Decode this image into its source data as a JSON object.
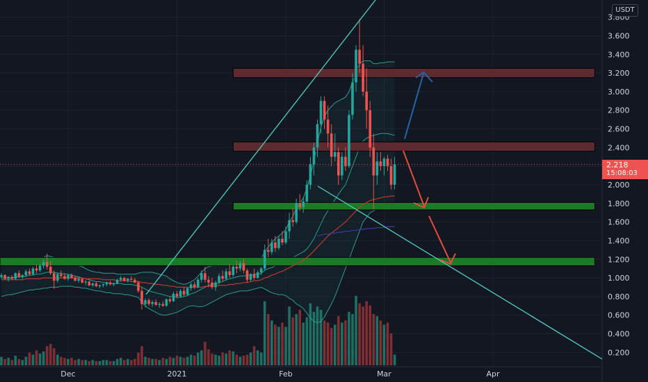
{
  "header": {
    "currency_label": "USDT"
  },
  "price_label": {
    "value": "2.218",
    "countdown": "15:08:03"
  },
  "chart_data": {
    "type": "candlestick",
    "yaxis": {
      "ylim": [
        0.1,
        3.9
      ],
      "ticks": [
        "0.200",
        "0.400",
        "0.600",
        "0.800",
        "1.000",
        "1.200",
        "1.400",
        "1.600",
        "1.800",
        "2.000",
        "2.200",
        "2.400",
        "2.600",
        "2.800",
        "3.000",
        "3.200",
        "3.400",
        "3.600",
        "3.800"
      ]
    },
    "xaxis": {
      "ticks": [
        {
          "label": "Dec",
          "i": 19
        },
        {
          "label": "2021",
          "i": 50
        },
        {
          "label": "Feb",
          "i": 81
        },
        {
          "label": "Mar",
          "i": 109
        },
        {
          "label": "Apr",
          "i": 140
        }
      ]
    },
    "current_price": 2.218,
    "zones": [
      {
        "name": "resistance-high",
        "from": 3.15,
        "to": 3.25,
        "color": "#5d2a2f",
        "i_start": 66,
        "i_end": 169
      },
      {
        "name": "resistance-mid",
        "from": 2.36,
        "to": 2.46,
        "color": "#5d2a2f",
        "i_start": 66,
        "i_end": 169
      },
      {
        "name": "support-mid",
        "from": 1.73,
        "to": 1.81,
        "color": "#1b7a25",
        "i_start": 66,
        "i_end": 169
      },
      {
        "name": "support-low",
        "from": 1.13,
        "to": 1.22,
        "color": "#1b7a25",
        "i_start": 0,
        "i_end": 169
      }
    ],
    "candles": [
      [
        1.01,
        1.05,
        0.99,
        1.03
      ],
      [
        1.03,
        1.04,
        0.98,
        0.99
      ],
      [
        0.99,
        1.02,
        0.96,
        1.01
      ],
      [
        1.01,
        1.03,
        0.98,
        0.99
      ],
      [
        0.99,
        1.06,
        0.98,
        1.05
      ],
      [
        1.05,
        1.08,
        1.0,
        1.01
      ],
      [
        1.01,
        1.04,
        0.99,
        1.03
      ],
      [
        1.03,
        1.09,
        1.01,
        1.07
      ],
      [
        1.07,
        1.1,
        1.02,
        1.04
      ],
      [
        1.04,
        1.12,
        1.03,
        1.1
      ],
      [
        1.1,
        1.14,
        1.05,
        1.08
      ],
      [
        1.08,
        1.15,
        1.06,
        1.13
      ],
      [
        1.13,
        1.2,
        1.1,
        1.17
      ],
      [
        1.17,
        1.26,
        1.09,
        1.12
      ],
      [
        1.12,
        1.18,
        1.03,
        1.05
      ],
      [
        1.05,
        1.08,
        0.88,
        0.97
      ],
      [
        0.97,
        1.06,
        0.95,
        1.04
      ],
      [
        1.04,
        1.08,
        1.0,
        1.02
      ],
      [
        1.02,
        1.05,
        0.98,
        0.99
      ],
      [
        0.99,
        1.04,
        0.97,
        1.03
      ],
      [
        1.03,
        1.05,
        0.99,
        1.0
      ],
      [
        1.0,
        1.02,
        0.96,
        0.97
      ],
      [
        0.97,
        1.01,
        0.95,
        0.99
      ],
      [
        0.99,
        1.0,
        0.94,
        0.95
      ],
      [
        0.95,
        0.98,
        0.92,
        0.96
      ],
      [
        0.96,
        0.97,
        0.91,
        0.92
      ],
      [
        0.92,
        0.95,
        0.9,
        0.94
      ],
      [
        0.94,
        0.96,
        0.9,
        0.91
      ],
      [
        0.91,
        0.93,
        0.89,
        0.92
      ],
      [
        0.92,
        0.94,
        0.9,
        0.93
      ],
      [
        0.93,
        0.96,
        0.91,
        0.95
      ],
      [
        0.95,
        0.97,
        0.92,
        0.93
      ],
      [
        0.93,
        0.95,
        0.91,
        0.94
      ],
      [
        0.94,
        0.99,
        0.93,
        0.98
      ],
      [
        0.98,
        1.02,
        0.96,
        1.0
      ],
      [
        1.0,
        1.01,
        0.96,
        0.97
      ],
      [
        0.97,
        1.0,
        0.95,
        0.99
      ],
      [
        0.99,
        1.02,
        0.97,
        0.98
      ],
      [
        0.98,
        1.0,
        0.94,
        0.95
      ],
      [
        0.95,
        0.97,
        0.84,
        0.86
      ],
      [
        0.86,
        0.9,
        0.66,
        0.72
      ],
      [
        0.72,
        0.78,
        0.68,
        0.76
      ],
      [
        0.76,
        0.78,
        0.7,
        0.72
      ],
      [
        0.72,
        0.76,
        0.69,
        0.74
      ],
      [
        0.74,
        0.77,
        0.7,
        0.71
      ],
      [
        0.71,
        0.74,
        0.68,
        0.72
      ],
      [
        0.72,
        0.75,
        0.69,
        0.7
      ],
      [
        0.7,
        0.78,
        0.69,
        0.77
      ],
      [
        0.77,
        0.8,
        0.73,
        0.75
      ],
      [
        0.75,
        0.85,
        0.74,
        0.83
      ],
      [
        0.83,
        0.86,
        0.78,
        0.8
      ],
      [
        0.8,
        0.88,
        0.79,
        0.86
      ],
      [
        0.86,
        0.9,
        0.8,
        0.82
      ],
      [
        0.82,
        0.9,
        0.81,
        0.89
      ],
      [
        0.89,
        0.95,
        0.86,
        0.93
      ],
      [
        0.93,
        0.96,
        0.88,
        0.9
      ],
      [
        0.9,
        1.0,
        0.89,
        0.98
      ],
      [
        0.98,
        1.08,
        0.95,
        1.05
      ],
      [
        1.05,
        1.12,
        0.95,
        0.98
      ],
      [
        0.98,
        1.02,
        0.9,
        0.95
      ],
      [
        0.95,
        1.0,
        0.88,
        0.9
      ],
      [
        0.9,
        0.97,
        0.86,
        0.95
      ],
      [
        0.95,
        1.05,
        0.93,
        1.02
      ],
      [
        1.02,
        1.08,
        0.96,
        0.99
      ],
      [
        0.99,
        1.1,
        0.97,
        1.07
      ],
      [
        1.07,
        1.15,
        1.0,
        1.03
      ],
      [
        1.03,
        1.14,
        1.01,
        1.12
      ],
      [
        1.12,
        1.18,
        1.05,
        1.1
      ],
      [
        1.1,
        1.18,
        1.07,
        1.16
      ],
      [
        1.16,
        1.2,
        1.05,
        1.08
      ],
      [
        1.08,
        1.1,
        0.95,
        0.98
      ],
      [
        0.98,
        1.05,
        0.96,
        1.04
      ],
      [
        1.04,
        1.1,
        0.98,
        1.0
      ],
      [
        1.0,
        1.08,
        0.99,
        1.06
      ],
      [
        1.06,
        1.12,
        1.03,
        1.1
      ],
      [
        1.1,
        1.36,
        1.08,
        1.3
      ],
      [
        1.3,
        1.42,
        1.22,
        1.28
      ],
      [
        1.28,
        1.42,
        1.25,
        1.38
      ],
      [
        1.38,
        1.45,
        1.28,
        1.32
      ],
      [
        1.32,
        1.45,
        1.3,
        1.42
      ],
      [
        1.42,
        1.5,
        1.35,
        1.38
      ],
      [
        1.38,
        1.55,
        1.36,
        1.5
      ],
      [
        1.5,
        1.7,
        1.42,
        1.62
      ],
      [
        1.62,
        1.75,
        1.55,
        1.6
      ],
      [
        1.6,
        1.85,
        1.58,
        1.8
      ],
      [
        1.8,
        1.9,
        1.72,
        1.76
      ],
      [
        1.76,
        1.86,
        1.7,
        1.82
      ],
      [
        1.82,
        2.05,
        1.8,
        2.0
      ],
      [
        2.0,
        2.3,
        1.95,
        2.22
      ],
      [
        2.22,
        2.45,
        2.1,
        2.4
      ],
      [
        2.4,
        2.7,
        2.3,
        2.65
      ],
      [
        2.65,
        2.95,
        2.55,
        2.9
      ],
      [
        2.9,
        2.95,
        2.6,
        2.7
      ],
      [
        2.7,
        2.85,
        2.4,
        2.55
      ],
      [
        2.55,
        2.65,
        2.2,
        2.3
      ],
      [
        2.3,
        2.55,
        2.25,
        2.35
      ],
      [
        2.35,
        2.4,
        2.0,
        2.1
      ],
      [
        2.1,
        2.35,
        2.05,
        2.3
      ],
      [
        2.3,
        2.4,
        2.15,
        2.2
      ],
      [
        2.2,
        2.8,
        2.18,
        2.75
      ],
      [
        2.75,
        3.2,
        2.7,
        3.1
      ],
      [
        3.1,
        3.5,
        3.0,
        3.45
      ],
      [
        3.45,
        3.78,
        3.2,
        3.3
      ],
      [
        3.3,
        3.5,
        2.95,
        3.0
      ],
      [
        3.0,
        3.25,
        2.6,
        2.8
      ],
      [
        2.8,
        2.9,
        2.3,
        2.4
      ],
      [
        2.4,
        2.55,
        1.74,
        2.1
      ],
      [
        2.1,
        2.35,
        2.0,
        2.25
      ],
      [
        2.25,
        2.35,
        2.15,
        2.2
      ],
      [
        2.2,
        2.3,
        2.1,
        2.28
      ],
      [
        2.28,
        2.32,
        2.15,
        2.2
      ],
      [
        2.2,
        2.28,
        1.95,
        2.0
      ],
      [
        2.0,
        2.3,
        1.95,
        2.218
      ]
    ],
    "bb_upper": [
      1.2,
      1.2,
      1.19,
      1.19,
      1.18,
      1.18,
      1.18,
      1.19,
      1.19,
      1.2,
      1.2,
      1.21,
      1.22,
      1.24,
      1.23,
      1.22,
      1.2,
      1.19,
      1.18,
      1.17,
      1.16,
      1.15,
      1.13,
      1.12,
      1.1,
      1.08,
      1.07,
      1.06,
      1.06,
      1.05,
      1.05,
      1.05,
      1.05,
      1.04,
      1.04,
      1.04,
      1.04,
      1.04,
      1.04,
      1.05,
      1.06,
      1.06,
      1.06,
      1.06,
      1.05,
      1.04,
      1.03,
      1.02,
      0.99,
      0.97,
      0.95,
      0.94,
      0.93,
      0.94,
      0.96,
      0.98,
      1.02,
      1.06,
      1.1,
      1.12,
      1.13,
      1.13,
      1.13,
      1.13,
      1.14,
      1.15,
      1.16,
      1.17,
      1.18,
      1.19,
      1.2,
      1.2,
      1.2,
      1.2,
      1.21,
      1.28,
      1.33,
      1.38,
      1.42,
      1.45,
      1.48,
      1.52,
      1.6,
      1.66,
      1.75,
      1.8,
      1.86,
      1.96,
      2.1,
      2.25,
      2.45,
      2.62,
      2.73,
      2.8,
      2.84,
      2.88,
      2.9,
      2.92,
      2.94,
      3.0,
      3.1,
      3.2,
      3.3,
      3.33,
      3.33,
      3.33,
      3.3,
      3.3,
      3.31,
      3.31,
      3.32,
      3.32,
      3.32
    ],
    "bb_lower": [
      0.8,
      0.81,
      0.82,
      0.82,
      0.83,
      0.84,
      0.85,
      0.86,
      0.87,
      0.87,
      0.88,
      0.88,
      0.89,
      0.89,
      0.9,
      0.9,
      0.9,
      0.91,
      0.91,
      0.91,
      0.91,
      0.9,
      0.9,
      0.89,
      0.89,
      0.88,
      0.87,
      0.86,
      0.86,
      0.85,
      0.84,
      0.84,
      0.83,
      0.83,
      0.83,
      0.82,
      0.82,
      0.81,
      0.8,
      0.79,
      0.74,
      0.7,
      0.67,
      0.65,
      0.63,
      0.61,
      0.6,
      0.6,
      0.61,
      0.62,
      0.63,
      0.65,
      0.67,
      0.69,
      0.7,
      0.7,
      0.69,
      0.69,
      0.7,
      0.72,
      0.74,
      0.76,
      0.78,
      0.8,
      0.82,
      0.83,
      0.84,
      0.85,
      0.86,
      0.86,
      0.86,
      0.87,
      0.88,
      0.89,
      0.9,
      0.88,
      0.86,
      0.84,
      0.83,
      0.82,
      0.82,
      0.81,
      0.78,
      0.76,
      0.72,
      0.7,
      0.67,
      0.62,
      0.57,
      0.53,
      0.52,
      0.53,
      0.58,
      0.65,
      0.72,
      0.8,
      0.9,
      1.0,
      1.1,
      1.2,
      1.3,
      1.4,
      1.5,
      1.6,
      1.65,
      1.7,
      1.72,
      1.74,
      1.76,
      1.77,
      1.78,
      1.79,
      1.8
    ],
    "bb_basis": [
      1.0,
      1.0,
      1.0,
      1.0,
      1.01,
      1.01,
      1.01,
      1.02,
      1.03,
      1.03,
      1.04,
      1.04,
      1.05,
      1.06,
      1.06,
      1.06,
      1.05,
      1.05,
      1.04,
      1.04,
      1.03,
      1.02,
      1.01,
      1.0,
      0.99,
      0.98,
      0.97,
      0.96,
      0.96,
      0.95,
      0.95,
      0.94,
      0.94,
      0.94,
      0.94,
      0.93,
      0.93,
      0.93,
      0.92,
      0.92,
      0.9,
      0.88,
      0.86,
      0.85,
      0.84,
      0.83,
      0.82,
      0.81,
      0.8,
      0.8,
      0.79,
      0.79,
      0.8,
      0.81,
      0.83,
      0.84,
      0.86,
      0.88,
      0.9,
      0.92,
      0.93,
      0.94,
      0.95,
      0.96,
      0.98,
      0.99,
      1.0,
      1.01,
      1.02,
      1.02,
      1.03,
      1.03,
      1.04,
      1.04,
      1.05,
      1.08,
      1.1,
      1.11,
      1.13,
      1.14,
      1.15,
      1.17,
      1.19,
      1.21,
      1.24,
      1.26,
      1.28,
      1.31,
      1.36,
      1.42,
      1.5,
      1.58,
      1.66,
      1.72,
      1.78,
      1.84,
      1.9,
      1.95,
      2.0,
      2.1,
      2.2,
      2.3,
      2.4,
      2.47,
      2.5,
      2.52,
      2.53,
      2.54,
      2.55,
      2.55,
      2.55,
      2.54,
      2.53
    ],
    "ma_red": [
      0.98,
      0.98,
      0.98,
      0.98,
      0.98,
      0.98,
      0.98,
      0.99,
      0.99,
      0.99,
      0.99,
      0.99,
      1.0,
      1.0,
      1.0,
      1.0,
      1.0,
      1.0,
      1.0,
      1.0,
      1.0,
      1.0,
      1.0,
      1.0,
      0.99,
      0.99,
      0.99,
      0.99,
      0.99,
      0.98,
      0.98,
      0.98,
      0.98,
      0.97,
      0.97,
      0.97,
      0.97,
      0.96,
      0.96,
      0.96,
      0.95,
      0.95,
      0.94,
      0.94,
      0.93,
      0.93,
      0.92,
      0.92,
      0.91,
      0.91,
      0.9,
      0.9,
      0.9,
      0.9,
      0.9,
      0.9,
      0.9,
      0.9,
      0.91,
      0.91,
      0.91,
      0.91,
      0.92,
      0.92,
      0.92,
      0.93,
      0.93,
      0.94,
      0.94,
      0.95,
      0.95,
      0.96,
      0.97,
      0.97,
      0.98,
      1.0,
      1.01,
      1.03,
      1.04,
      1.06,
      1.07,
      1.09,
      1.11,
      1.13,
      1.15,
      1.17,
      1.19,
      1.22,
      1.25,
      1.29,
      1.33,
      1.37,
      1.41,
      1.45,
      1.48,
      1.51,
      1.54,
      1.57,
      1.6,
      1.64,
      1.68,
      1.72,
      1.76,
      1.79,
      1.81,
      1.83,
      1.84,
      1.85,
      1.86,
      1.87,
      1.87,
      1.88,
      1.88
    ],
    "ma_blue": [
      null,
      null,
      null,
      null,
      null,
      null,
      null,
      null,
      null,
      null,
      null,
      null,
      null,
      null,
      null,
      null,
      null,
      null,
      null,
      null,
      null,
      null,
      null,
      null,
      null,
      null,
      null,
      null,
      null,
      null,
      null,
      null,
      null,
      null,
      null,
      null,
      null,
      null,
      null,
      null,
      null,
      null,
      null,
      null,
      null,
      null,
      null,
      null,
      null,
      null,
      null,
      null,
      null,
      null,
      null,
      null,
      null,
      null,
      null,
      null,
      null,
      null,
      null,
      null,
      null,
      null,
      null,
      null,
      null,
      null,
      null,
      null,
      null,
      null,
      null,
      null,
      null,
      null,
      null,
      null,
      null,
      null,
      null,
      null,
      null,
      null,
      null,
      null,
      null,
      null,
      1.45,
      1.46,
      1.47,
      1.47,
      1.48,
      1.48,
      1.49,
      1.49,
      1.5,
      1.5,
      1.51,
      1.51,
      1.52,
      1.52,
      1.53,
      1.53,
      1.53,
      1.54,
      1.54,
      1.54,
      1.55,
      1.55,
      1.55
    ],
    "volumes": [
      8,
      6,
      7,
      5,
      9,
      6,
      5,
      8,
      12,
      10,
      14,
      11,
      13,
      18,
      20,
      16,
      10,
      8,
      7,
      6,
      7,
      5,
      6,
      5,
      5,
      4,
      5,
      4,
      4,
      5,
      5,
      4,
      4,
      6,
      7,
      5,
      6,
      5,
      6,
      12,
      18,
      8,
      7,
      6,
      6,
      5,
      7,
      6,
      8,
      7,
      9,
      8,
      7,
      8,
      10,
      9,
      12,
      14,
      22,
      15,
      11,
      10,
      9,
      12,
      11,
      14,
      13,
      10,
      8,
      9,
      10,
      12,
      18,
      14,
      12,
      60,
      48,
      42,
      38,
      36,
      40,
      36,
      55,
      45,
      48,
      52,
      40,
      45,
      58,
      50,
      55,
      52,
      42,
      40,
      35,
      38,
      46,
      40,
      42,
      50,
      48,
      65,
      58,
      55,
      60,
      56,
      48,
      46,
      42,
      38,
      40,
      30,
      10
    ],
    "volume_colors_up": [
      true,
      false,
      true,
      false,
      true,
      false,
      true,
      true,
      false,
      true,
      false,
      true,
      true,
      false,
      false,
      false,
      true,
      false,
      false,
      true,
      false,
      false,
      true,
      false,
      true,
      false,
      true,
      false,
      true,
      true,
      true,
      false,
      true,
      true,
      true,
      false,
      true,
      false,
      false,
      false,
      false,
      true,
      false,
      true,
      false,
      true,
      false,
      true,
      false,
      true,
      false,
      true,
      false,
      true,
      true,
      false,
      true,
      true,
      false,
      false,
      false,
      true,
      true,
      false,
      true,
      false,
      true,
      false,
      true,
      false,
      false,
      true,
      false,
      true,
      true,
      true,
      false,
      true,
      false,
      true,
      false,
      true,
      true,
      false,
      true,
      false,
      true,
      true,
      true,
      true,
      true,
      true,
      false,
      false,
      false,
      true,
      false,
      true,
      false,
      true,
      true,
      true,
      false,
      false,
      false,
      false,
      false,
      true,
      false,
      true,
      false,
      false,
      true
    ]
  }
}
